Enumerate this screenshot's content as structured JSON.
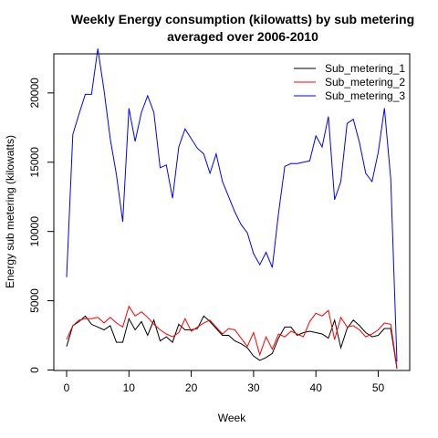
{
  "chart_data": {
    "type": "line",
    "title": "Weekly Energy consumption (kilowatts) by sub metering",
    "subtitle": "averaged over 2006-2010",
    "xlabel": "Week",
    "ylabel": "Energy sub metering (kilowatts)",
    "xlim": [
      0,
      53
    ],
    "ylim": [
      0,
      22000
    ],
    "x_ticks": [
      0,
      10,
      20,
      30,
      40,
      50
    ],
    "y_ticks": [
      0,
      5000,
      10000,
      15000,
      20000
    ],
    "grid": false,
    "legend_position": "top-right",
    "x": [
      0,
      1,
      2,
      3,
      4,
      5,
      6,
      7,
      8,
      9,
      10,
      11,
      12,
      13,
      14,
      15,
      16,
      17,
      18,
      19,
      20,
      21,
      22,
      23,
      24,
      25,
      26,
      27,
      28,
      29,
      30,
      31,
      32,
      33,
      34,
      35,
      36,
      37,
      38,
      39,
      40,
      41,
      42,
      43,
      44,
      45,
      46,
      47,
      48,
      49,
      50,
      51,
      52,
      53
    ],
    "series": [
      {
        "name": "Sub_metering_1",
        "color": "#000000",
        "values": [
          1700,
          3200,
          3500,
          3900,
          3300,
          3100,
          2900,
          3200,
          2000,
          2000,
          3700,
          2900,
          3500,
          2500,
          3600,
          2100,
          2400,
          2000,
          3300,
          2900,
          2900,
          3000,
          3900,
          3500,
          3000,
          2500,
          2500,
          2100,
          1900,
          1600,
          1000,
          700,
          900,
          1200,
          2300,
          3100,
          3100,
          2500,
          2700,
          2800,
          2700,
          2600,
          2300,
          3600,
          1600,
          3000,
          3600,
          3200,
          2700,
          2400,
          2500,
          3000,
          3000,
          100
        ]
      },
      {
        "name": "Sub_metering_2",
        "color": "#ff0000",
        "values": [
          2200,
          3200,
          3600,
          3700,
          3700,
          3800,
          3400,
          3800,
          3400,
          3100,
          4600,
          3900,
          4200,
          3800,
          3300,
          2900,
          2600,
          2400,
          2700,
          3700,
          2800,
          3100,
          3400,
          3600,
          3100,
          2600,
          3000,
          2900,
          2300,
          1700,
          2700,
          1100,
          2400,
          1500,
          2600,
          2400,
          2800,
          2600,
          2400,
          3500,
          4100,
          3900,
          4300,
          2200,
          3800,
          3100,
          3200,
          2900,
          2400,
          2600,
          2900,
          3400,
          3300,
          200
        ]
      },
      {
        "name": "Sub_metering_3",
        "color": "#0000ff",
        "values": [
          6700,
          17000,
          18500,
          19900,
          19900,
          23200,
          20200,
          16700,
          14100,
          10700,
          18900,
          16500,
          18600,
          19800,
          18600,
          14600,
          14800,
          12400,
          16100,
          17400,
          16700,
          16000,
          15600,
          14200,
          15600,
          13600,
          12500,
          11400,
          10500,
          9900,
          8400,
          7600,
          8500,
          7400,
          11300,
          14700,
          14900,
          14900,
          15000,
          15100,
          16900,
          16100,
          18300,
          12300,
          13600,
          17800,
          18100,
          16400,
          14200,
          13600,
          15700,
          18900,
          13800,
          600
        ]
      }
    ]
  }
}
